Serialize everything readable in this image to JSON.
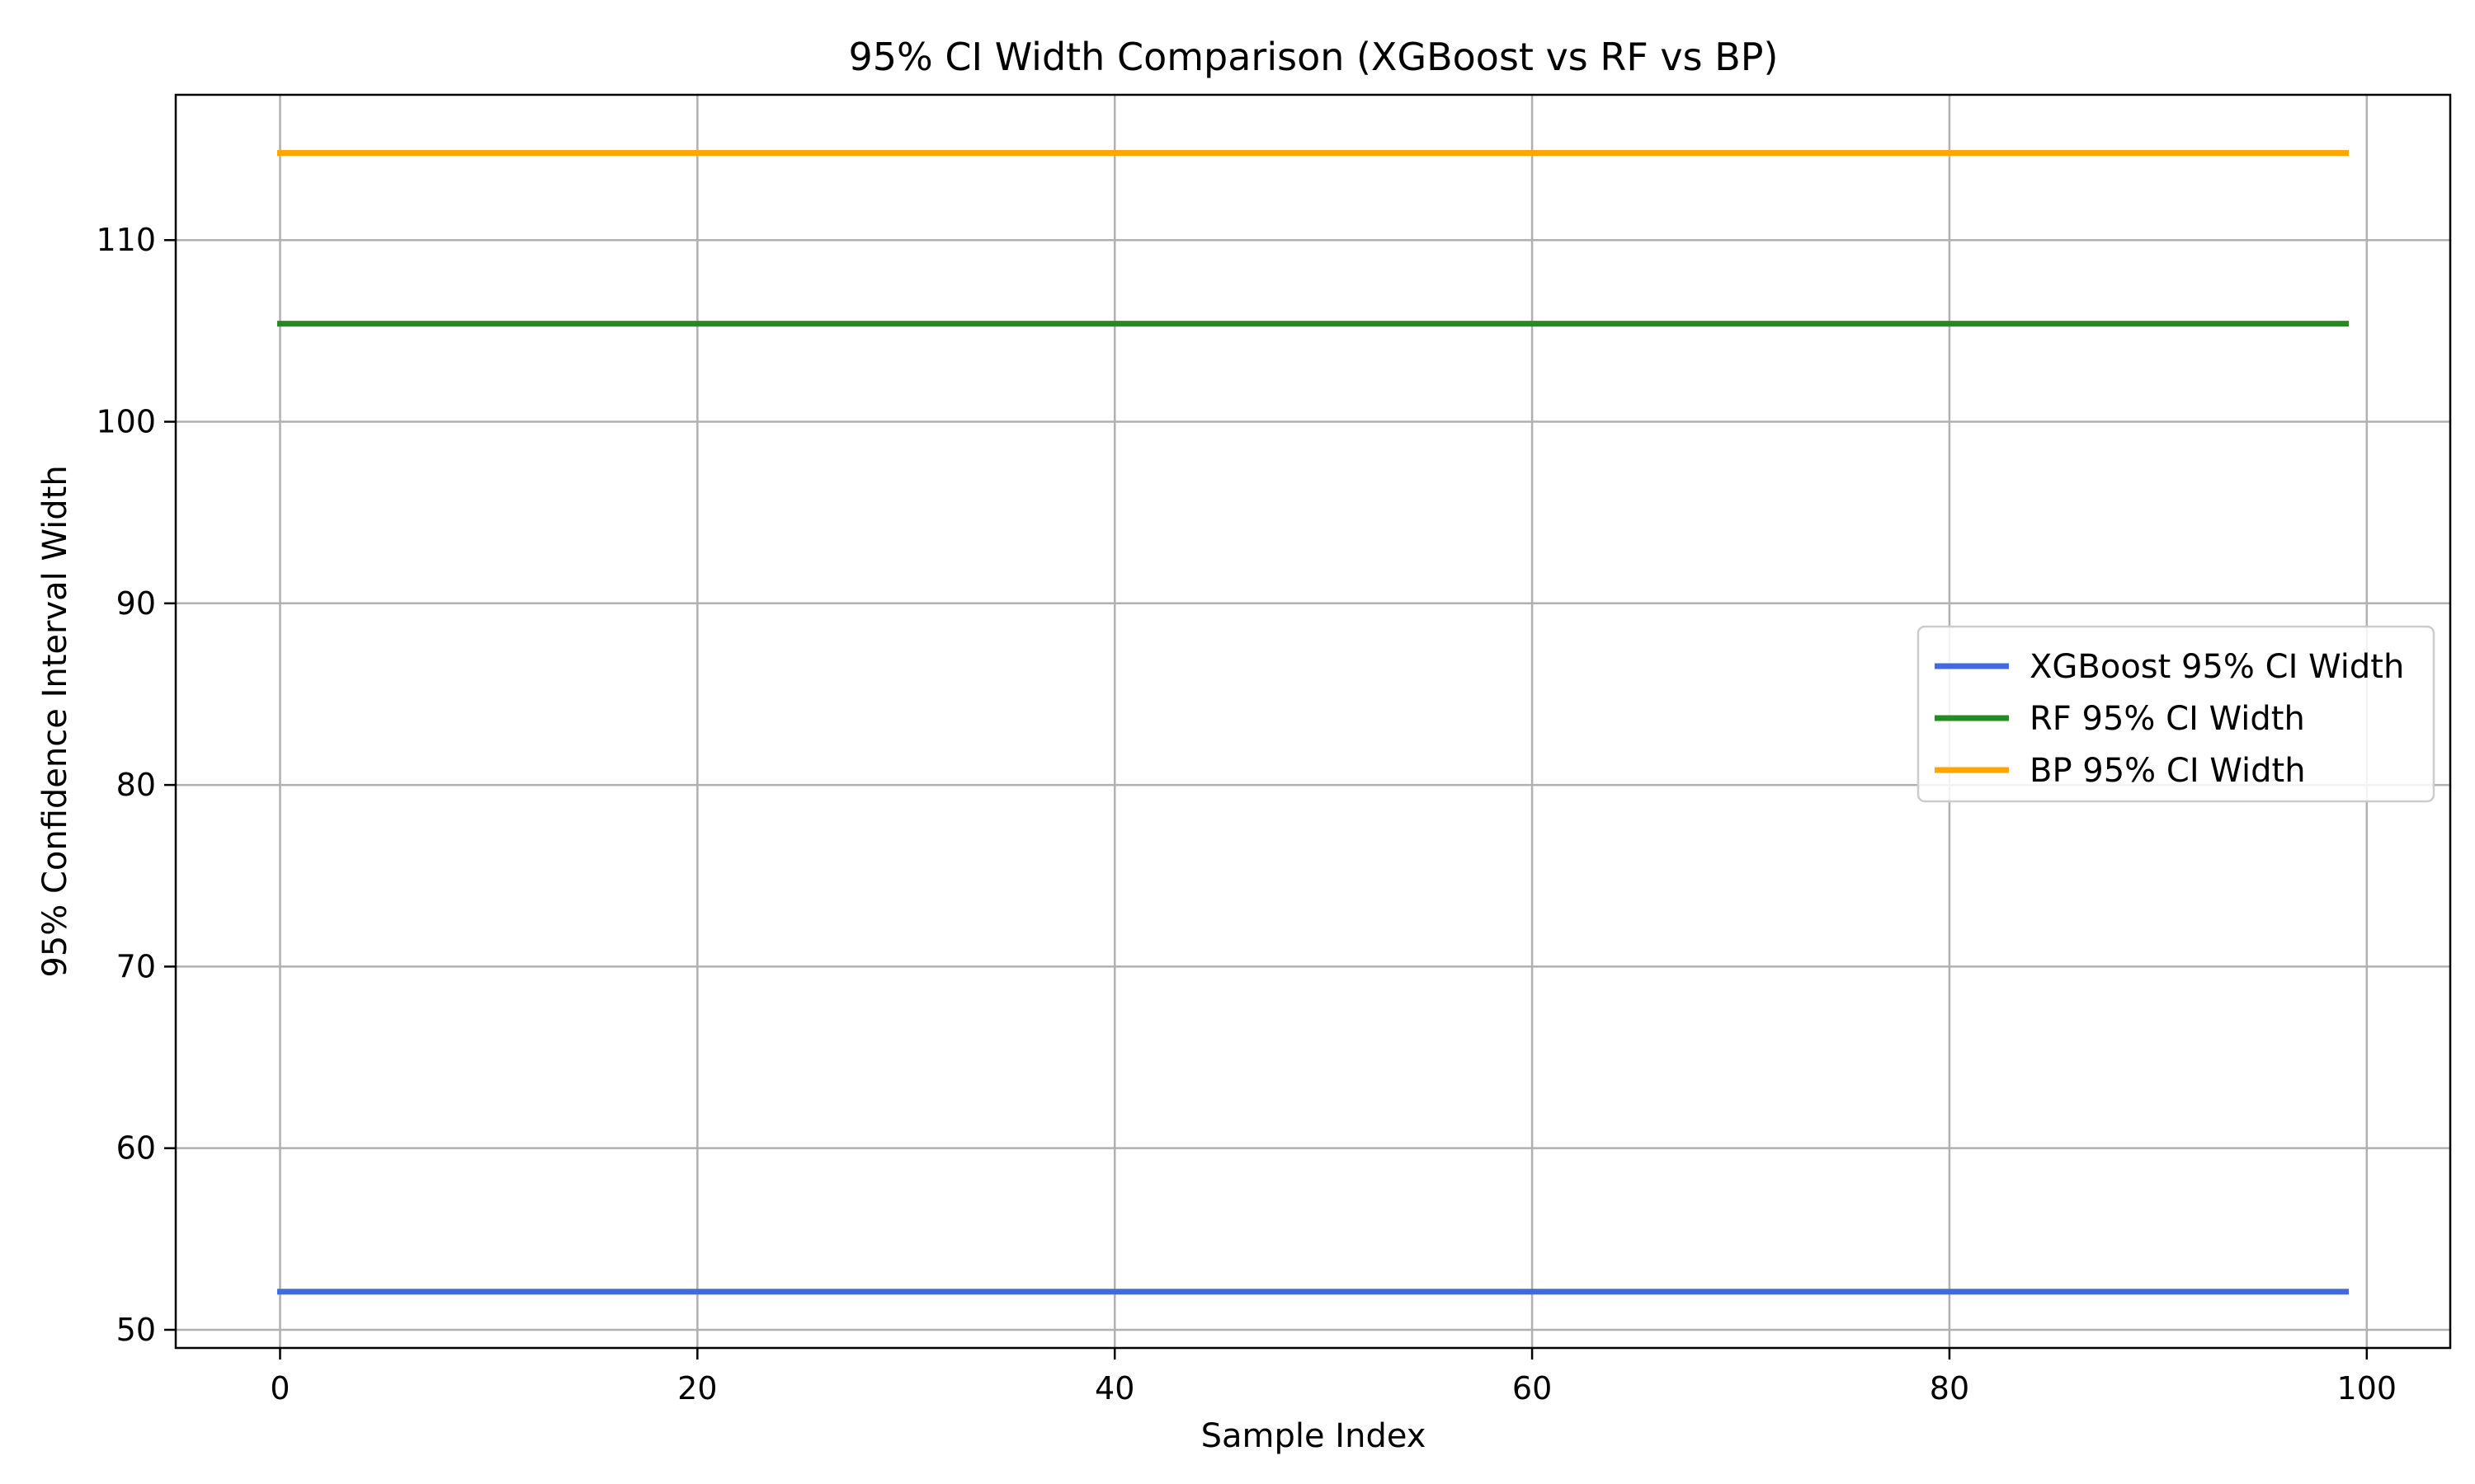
{
  "chart_data": {
    "type": "line",
    "title": "95% CI Width Comparison (XGBoost vs RF vs BP)",
    "xlabel": "Sample Index",
    "ylabel": "95% Confidence Interval Width",
    "xlim": [
      -5,
      104
    ],
    "ylim": [
      49,
      118
    ],
    "x_ticks": [
      0,
      20,
      40,
      60,
      80,
      100
    ],
    "y_ticks": [
      50,
      60,
      70,
      80,
      90,
      100,
      110
    ],
    "grid": true,
    "legend_position": "center-right",
    "x_range": [
      0,
      99
    ],
    "series": [
      {
        "name": "XGBoost 95% CI Width",
        "color": "#4169e1",
        "constant_value": 52.1,
        "x": [
          0,
          99
        ],
        "values": [
          52.1,
          52.1
        ]
      },
      {
        "name": "RF 95% CI Width",
        "color": "#228b22",
        "constant_value": 105.4,
        "x": [
          0,
          99
        ],
        "values": [
          105.4,
          105.4
        ]
      },
      {
        "name": "BP 95% CI Width",
        "color": "#ffa500",
        "constant_value": 114.8,
        "x": [
          0,
          99
        ],
        "values": [
          114.8,
          114.8
        ]
      }
    ]
  }
}
